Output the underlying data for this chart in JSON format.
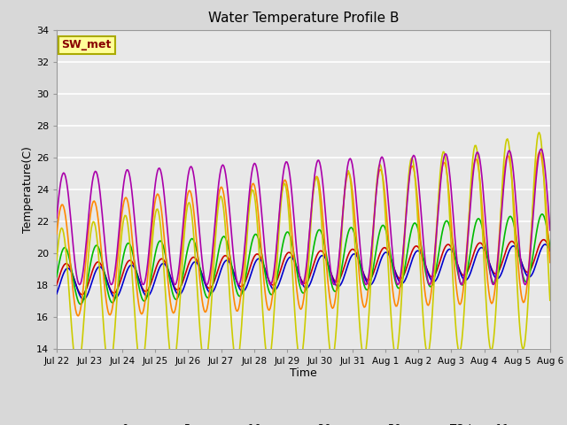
{
  "title": "Water Temperature Profile B",
  "xlabel": "Time",
  "ylabel": "Temperature(C)",
  "ylim": [
    14,
    34
  ],
  "yticks": [
    14,
    16,
    18,
    20,
    22,
    24,
    26,
    28,
    30,
    32,
    34
  ],
  "fig_facecolor": "#d8d8d8",
  "plot_facecolor": "#e8e8e8",
  "series": {
    "0cm": {
      "color": "#cc0000",
      "lw": 1.2
    },
    "+5cm": {
      "color": "#0000cc",
      "lw": 1.2
    },
    "+10cm": {
      "color": "#00bb00",
      "lw": 1.2
    },
    "+30cm": {
      "color": "#ff8800",
      "lw": 1.2
    },
    "+50cm": {
      "color": "#cccc00",
      "lw": 1.2
    },
    "TC_temp11": {
      "color": "#aa00aa",
      "lw": 1.2
    }
  },
  "xtick_labels": [
    "Jul 22",
    "Jul 23",
    "Jul 24",
    "Jul 25",
    "Jul 26",
    "Jul 27",
    "Jul 28",
    "Jul 29",
    "Jul 30",
    "Jul 31",
    "Aug 1",
    "Aug 2",
    "Aug 3",
    "Aug 4",
    "Aug 5",
    "Aug 6"
  ],
  "annotation_text": "SW_met",
  "annotation_color": "#880000",
  "annotation_bg": "#ffff99",
  "annotation_border": "#aaaa00",
  "n_days": 15.5,
  "n_pts": 500,
  "base_0cm": [
    18.3,
    0.1
  ],
  "base_5cm": [
    18.0,
    0.1
  ],
  "base_10cm": [
    18.5,
    0.12
  ],
  "base_30cm": [
    19.5,
    0.14
  ],
  "base_50cm": [
    17.0,
    0.25
  ],
  "base_tc": [
    21.5,
    0.05
  ],
  "amp_0cm": [
    1.0,
    0.0
  ],
  "amp_5cm": [
    1.0,
    0.0
  ],
  "amp_10cm": [
    1.8,
    0.02
  ],
  "amp_30cm": [
    3.5,
    0.08
  ],
  "amp_50cm": [
    4.5,
    0.15
  ],
  "amp_tc": [
    3.5,
    0.05
  ],
  "phase_0cm": -0.3,
  "phase_5cm": -0.6,
  "phase_10cm": 0.0,
  "phase_30cm": 0.5,
  "phase_50cm": 0.6,
  "phase_tc": 0.2
}
